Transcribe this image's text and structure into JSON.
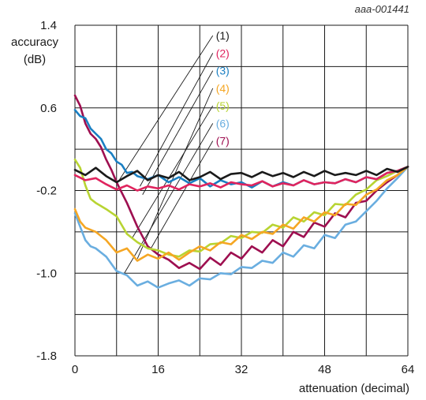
{
  "chart_data": {
    "type": "line",
    "figure_id": "aaa-001441",
    "ylabel_line1": "accuracy",
    "ylabel_line2": "(dB)",
    "xlabel": "attenuation (decimal)",
    "xlim": [
      0,
      64
    ],
    "ylim": [
      -1.8,
      1.4
    ],
    "xticks": [
      0,
      16,
      32,
      48,
      64
    ],
    "yticks": [
      1.4,
      0.6,
      -0.2,
      -1.0,
      -1.8
    ],
    "xtick_labels": [
      "0",
      "16",
      "32",
      "48",
      "64"
    ],
    "ytick_labels": [
      "1.4",
      "0.6",
      "-0.2",
      "-1.0",
      "-1.8"
    ],
    "grid": true,
    "series": [
      {
        "name": "(1)",
        "color": "#1a1a1a",
        "x": [
          0,
          2,
          4,
          6,
          8,
          10,
          12,
          14,
          16,
          18,
          20,
          22,
          24,
          26,
          28,
          30,
          32,
          34,
          36,
          38,
          40,
          42,
          44,
          46,
          48,
          50,
          52,
          54,
          56,
          58,
          60,
          62,
          64
        ],
        "y": [
          0.0,
          -0.05,
          0.02,
          -0.06,
          -0.12,
          -0.06,
          -0.01,
          -0.1,
          -0.05,
          -0.08,
          -0.02,
          -0.1,
          -0.07,
          -0.02,
          -0.09,
          -0.04,
          -0.03,
          -0.07,
          -0.02,
          -0.06,
          -0.03,
          -0.07,
          -0.02,
          -0.06,
          -0.01,
          -0.05,
          -0.03,
          -0.05,
          -0.01,
          -0.05,
          0.01,
          -0.02,
          0.03
        ]
      },
      {
        "name": "(2)",
        "color": "#e0245e",
        "x": [
          0,
          2,
          4,
          6,
          8,
          10,
          12,
          14,
          16,
          18,
          20,
          22,
          24,
          26,
          28,
          30,
          32,
          34,
          36,
          38,
          40,
          42,
          44,
          46,
          48,
          50,
          52,
          54,
          56,
          58,
          60,
          62,
          64
        ],
        "y": [
          -0.05,
          -0.1,
          -0.08,
          -0.14,
          -0.19,
          -0.15,
          -0.2,
          -0.16,
          -0.18,
          -0.15,
          -0.19,
          -0.14,
          -0.16,
          -0.13,
          -0.17,
          -0.12,
          -0.14,
          -0.15,
          -0.11,
          -0.16,
          -0.13,
          -0.15,
          -0.1,
          -0.14,
          -0.12,
          -0.13,
          -0.09,
          -0.12,
          -0.07,
          -0.09,
          -0.03,
          -0.01,
          0.03
        ]
      },
      {
        "name": "(3)",
        "color": "#1a7fc2",
        "x": [
          0,
          1,
          2,
          3,
          4,
          5,
          6,
          7,
          8,
          9,
          10,
          11,
          12,
          14,
          16,
          18,
          20,
          22,
          24,
          26,
          28,
          30,
          32,
          34,
          36,
          38,
          40,
          42,
          44,
          46,
          48,
          50,
          52,
          54,
          56,
          58,
          60,
          62,
          64
        ],
        "y": [
          0.58,
          0.52,
          0.5,
          0.4,
          0.35,
          0.3,
          0.2,
          0.16,
          0.08,
          0.05,
          -0.03,
          -0.02,
          -0.06,
          -0.09,
          -0.05,
          -0.12,
          -0.07,
          -0.13,
          -0.08,
          -0.16,
          -0.1,
          -0.14,
          -0.12,
          -0.17,
          -0.11,
          -0.16,
          -0.12,
          -0.15,
          -0.1,
          -0.14,
          -0.12,
          -0.13,
          -0.09,
          -0.12,
          -0.07,
          -0.09,
          -0.03,
          -0.01,
          0.03
        ]
      },
      {
        "name": "(4)",
        "color": "#f5a623",
        "x": [
          0,
          1,
          2,
          4,
          6,
          8,
          10,
          12,
          14,
          16,
          18,
          20,
          22,
          24,
          26,
          28,
          30,
          32,
          34,
          36,
          38,
          40,
          42,
          44,
          46,
          48,
          50,
          52,
          54,
          56,
          58,
          60,
          62,
          64
        ],
        "y": [
          -0.38,
          -0.5,
          -0.56,
          -0.6,
          -0.68,
          -0.8,
          -0.76,
          -0.88,
          -0.82,
          -0.86,
          -0.8,
          -0.87,
          -0.8,
          -0.74,
          -0.78,
          -0.7,
          -0.72,
          -0.63,
          -0.67,
          -0.6,
          -0.62,
          -0.53,
          -0.57,
          -0.46,
          -0.5,
          -0.41,
          -0.44,
          -0.33,
          -0.34,
          -0.24,
          -0.19,
          -0.1,
          -0.05,
          0.03
        ]
      },
      {
        "name": "(5)",
        "color": "#b8d432",
        "x": [
          0,
          1,
          2,
          3,
          4,
          6,
          8,
          10,
          12,
          14,
          16,
          18,
          20,
          22,
          24,
          26,
          28,
          30,
          32,
          34,
          36,
          38,
          40,
          42,
          44,
          46,
          48,
          50,
          52,
          54,
          56,
          58,
          60,
          62,
          64
        ],
        "y": [
          0.1,
          0.02,
          -0.15,
          -0.28,
          -0.32,
          -0.38,
          -0.45,
          -0.62,
          -0.7,
          -0.76,
          -0.78,
          -0.82,
          -0.84,
          -0.78,
          -0.79,
          -0.72,
          -0.71,
          -0.64,
          -0.66,
          -0.6,
          -0.61,
          -0.53,
          -0.56,
          -0.46,
          -0.5,
          -0.41,
          -0.44,
          -0.33,
          -0.34,
          -0.24,
          -0.19,
          -0.1,
          -0.06,
          -0.01,
          0.03
        ]
      },
      {
        "name": "(6)",
        "color": "#6aaee0",
        "x": [
          0,
          1,
          2,
          3,
          4,
          6,
          8,
          10,
          12,
          14,
          16,
          18,
          20,
          22,
          24,
          26,
          28,
          30,
          32,
          34,
          36,
          38,
          40,
          42,
          44,
          46,
          48,
          50,
          52,
          54,
          56,
          58,
          60,
          62,
          64
        ],
        "y": [
          -0.42,
          -0.55,
          -0.68,
          -0.74,
          -0.76,
          -0.84,
          -0.98,
          -1.02,
          -1.12,
          -1.08,
          -1.14,
          -1.1,
          -1.07,
          -1.12,
          -1.05,
          -1.06,
          -1.0,
          -1.01,
          -0.94,
          -0.95,
          -0.88,
          -0.9,
          -0.8,
          -0.84,
          -0.73,
          -0.76,
          -0.63,
          -0.66,
          -0.53,
          -0.5,
          -0.4,
          -0.3,
          -0.18,
          -0.08,
          0.03
        ]
      },
      {
        "name": "(7)",
        "color": "#9e0f50",
        "x": [
          0,
          1,
          2,
          3,
          4,
          5,
          6,
          7,
          8,
          9,
          10,
          12,
          14,
          16,
          18,
          20,
          22,
          24,
          26,
          28,
          30,
          32,
          34,
          36,
          38,
          40,
          42,
          44,
          46,
          48,
          50,
          52,
          54,
          56,
          58,
          60,
          62,
          64
        ],
        "y": [
          0.72,
          0.62,
          0.45,
          0.35,
          0.3,
          0.22,
          0.1,
          0.0,
          -0.12,
          -0.22,
          -0.32,
          -0.55,
          -0.74,
          -0.82,
          -0.87,
          -0.95,
          -0.9,
          -0.96,
          -0.85,
          -0.92,
          -0.8,
          -0.86,
          -0.74,
          -0.8,
          -0.68,
          -0.74,
          -0.6,
          -0.65,
          -0.51,
          -0.55,
          -0.42,
          -0.46,
          -0.32,
          -0.3,
          -0.2,
          -0.12,
          -0.05,
          0.03
        ]
      }
    ],
    "leaders": [
      {
        "from_x": 26.5,
        "from_y": 1.3,
        "to_x": 8.5,
        "to_y": -0.1
      },
      {
        "from_x": 26.5,
        "from_y": 1.13,
        "to_x": 12.5,
        "to_y": -0.16
      },
      {
        "from_x": 26.5,
        "from_y": 0.96,
        "to_x": 13.0,
        "to_y": -0.24
      },
      {
        "from_x": 26.5,
        "from_y": 0.79,
        "to_x": 12.0,
        "to_y": -0.86
      },
      {
        "from_x": 26.5,
        "from_y": 0.62,
        "to_x": 11.0,
        "to_y": -0.66
      },
      {
        "from_x": 26.5,
        "from_y": 0.45,
        "to_x": 9.5,
        "to_y": -1.0
      },
      {
        "from_x": 26.5,
        "from_y": 0.28,
        "to_x": 14.5,
        "to_y": -0.77
      }
    ]
  }
}
